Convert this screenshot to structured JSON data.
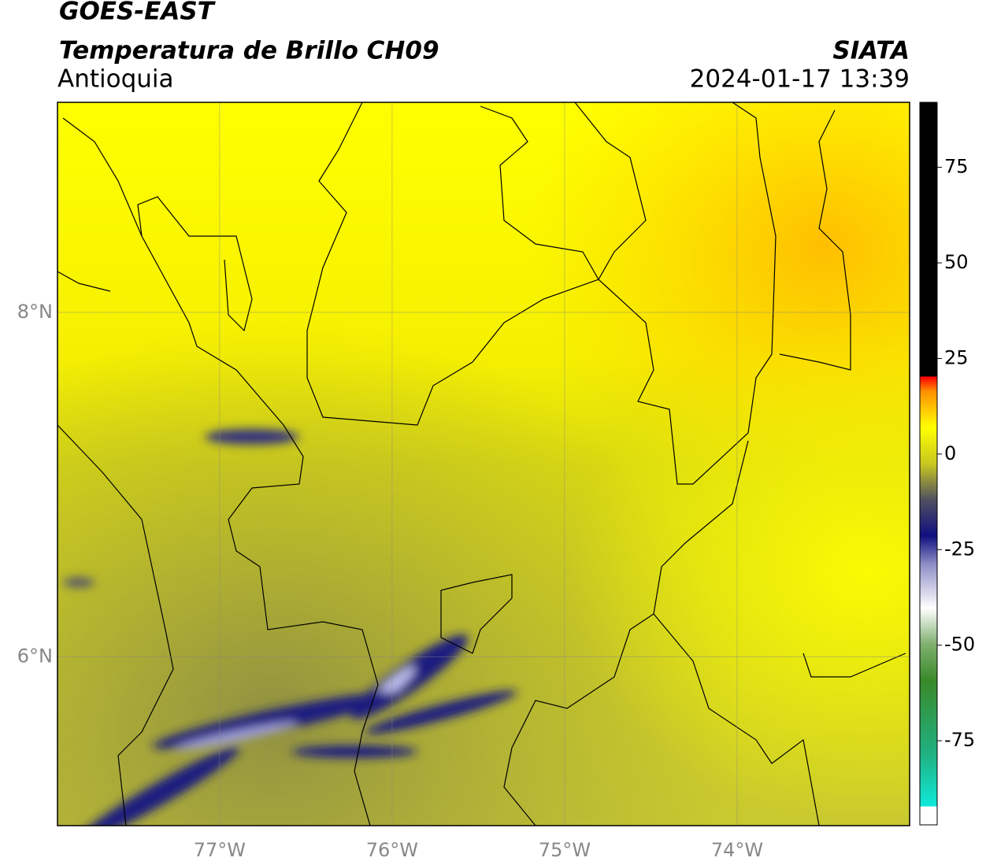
{
  "header": {
    "title": "GOES-EAST",
    "subtitle": "Temperatura de Brillo CH09",
    "region": "Antioquia",
    "agency": "SIATA",
    "datetime": "2024-01-17 13:39"
  },
  "map": {
    "xlim": [
      -77.94,
      -73.0
    ],
    "ylim": [
      5.02,
      9.22
    ],
    "xticks": [
      {
        "value": -77,
        "label": "77°W"
      },
      {
        "value": -76,
        "label": "76°W"
      },
      {
        "value": -75,
        "label": "75°W"
      },
      {
        "value": -74,
        "label": "74°W"
      }
    ],
    "yticks": [
      {
        "value": 8,
        "label": "8°N"
      },
      {
        "value": 6,
        "label": "6°N"
      }
    ],
    "grid": true
  },
  "colorbar": {
    "lim": [
      -97,
      92
    ],
    "ticks": [
      75,
      50,
      25,
      0,
      -25,
      -50,
      -75
    ]
  }
}
